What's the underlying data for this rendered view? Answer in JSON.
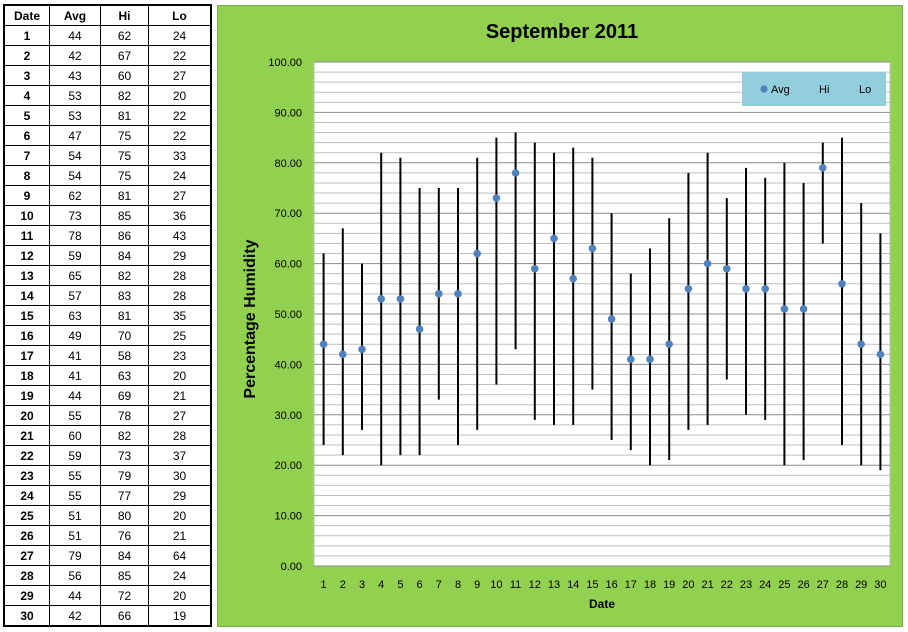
{
  "table": {
    "headers": [
      "Date",
      "Avg",
      "Hi",
      "Lo"
    ],
    "rows": [
      [
        "1",
        "44",
        "62",
        "24"
      ],
      [
        "2",
        "42",
        "67",
        "22"
      ],
      [
        "3",
        "43",
        "60",
        "27"
      ],
      [
        "4",
        "53",
        "82",
        "20"
      ],
      [
        "5",
        "53",
        "81",
        "22"
      ],
      [
        "6",
        "47",
        "75",
        "22"
      ],
      [
        "7",
        "54",
        "75",
        "33"
      ],
      [
        "8",
        "54",
        "75",
        "24"
      ],
      [
        "9",
        "62",
        "81",
        "27"
      ],
      [
        "10",
        "73",
        "85",
        "36"
      ],
      [
        "11",
        "78",
        "86",
        "43"
      ],
      [
        "12",
        "59",
        "84",
        "29"
      ],
      [
        "13",
        "65",
        "82",
        "28"
      ],
      [
        "14",
        "57",
        "83",
        "28"
      ],
      [
        "15",
        "63",
        "81",
        "35"
      ],
      [
        "16",
        "49",
        "70",
        "25"
      ],
      [
        "17",
        "41",
        "58",
        "23"
      ],
      [
        "18",
        "41",
        "63",
        "20"
      ],
      [
        "19",
        "44",
        "69",
        "21"
      ],
      [
        "20",
        "55",
        "78",
        "27"
      ],
      [
        "21",
        "60",
        "82",
        "28"
      ],
      [
        "22",
        "59",
        "73",
        "37"
      ],
      [
        "23",
        "55",
        "79",
        "30"
      ],
      [
        "24",
        "55",
        "77",
        "29"
      ],
      [
        "25",
        "51",
        "80",
        "20"
      ],
      [
        "26",
        "51",
        "76",
        "21"
      ],
      [
        "27",
        "79",
        "84",
        "64"
      ],
      [
        "28",
        "56",
        "85",
        "24"
      ],
      [
        "29",
        "44",
        "72",
        "20"
      ],
      [
        "30",
        "42",
        "66",
        "19"
      ]
    ]
  },
  "chart_data": {
    "type": "scatter",
    "title": "September 2011",
    "xlabel": "Date",
    "ylabel": "Percentage Humidity",
    "ylim": [
      0,
      100
    ],
    "y_major_step": 10,
    "y_minor_step": 2,
    "y_tick_labels": [
      "0.00",
      "10.00",
      "20.00",
      "30.00",
      "40.00",
      "50.00",
      "60.00",
      "70.00",
      "80.00",
      "90.00",
      "100.00"
    ],
    "x": [
      1,
      2,
      3,
      4,
      5,
      6,
      7,
      8,
      9,
      10,
      11,
      12,
      13,
      14,
      15,
      16,
      17,
      18,
      19,
      20,
      21,
      22,
      23,
      24,
      25,
      26,
      27,
      28,
      29,
      30
    ],
    "series": [
      {
        "name": "Avg",
        "values": [
          44,
          42,
          43,
          53,
          53,
          47,
          54,
          54,
          62,
          73,
          78,
          59,
          65,
          57,
          63,
          49,
          41,
          41,
          44,
          55,
          60,
          59,
          55,
          55,
          51,
          51,
          79,
          56,
          44,
          42
        ]
      },
      {
        "name": "Hi",
        "values": [
          62,
          67,
          60,
          82,
          81,
          75,
          75,
          75,
          81,
          85,
          86,
          84,
          82,
          83,
          81,
          70,
          58,
          63,
          69,
          78,
          82,
          73,
          79,
          77,
          80,
          76,
          84,
          85,
          72,
          66
        ]
      },
      {
        "name": "Lo",
        "values": [
          24,
          22,
          27,
          20,
          22,
          22,
          33,
          24,
          27,
          36,
          43,
          29,
          28,
          28,
          35,
          25,
          23,
          20,
          21,
          27,
          28,
          37,
          30,
          29,
          20,
          21,
          64,
          24,
          20,
          19
        ]
      }
    ],
    "legend_position": "top-right",
    "grid": true,
    "colors": {
      "background": "#92d050",
      "plot_area": "#ffffff",
      "avg_marker": "#4f81bd",
      "hi_lo_line": "#000000",
      "legend_bg": "#92cddc",
      "gridline": "#a6a6a6"
    }
  }
}
